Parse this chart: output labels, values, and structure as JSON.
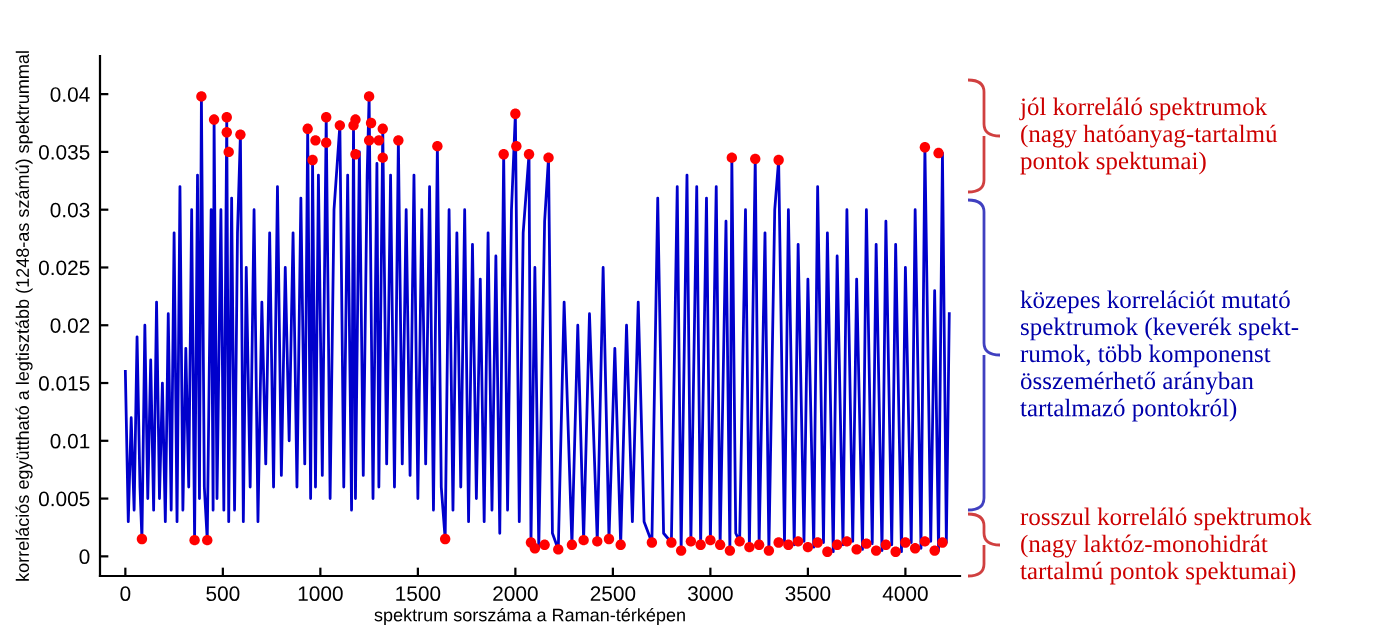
{
  "chart_data": {
    "type": "line",
    "xlabel": "spektrum sorszáma a Raman-térképen",
    "ylabel": "korrelációs együttható a legtisztább (1248-as számú) spektrummal",
    "xlim": [
      -130,
      4280
    ],
    "ylim": [
      -0.0017,
      0.0433
    ],
    "xticks": [
      0,
      500,
      1000,
      1500,
      2000,
      2500,
      3000,
      3500,
      4000
    ],
    "yticks": [
      0,
      0.005,
      0.01,
      0.015,
      0.02,
      0.025,
      0.03,
      0.035,
      0.04
    ],
    "grid": false,
    "legend": false,
    "series": [
      {
        "color": "#0000cc",
        "line_style": "solid",
        "marker": "none",
        "x": [
          0,
          15,
          30,
          45,
          60,
          75,
          85,
          100,
          115,
          130,
          145,
          160,
          175,
          190,
          205,
          220,
          235,
          250,
          265,
          280,
          295,
          310,
          325,
          340,
          355,
          370,
          380,
          390,
          405,
          420,
          440,
          450,
          455,
          470,
          490,
          505,
          520,
          530,
          545,
          560,
          575,
          590,
          605,
          620,
          640,
          660,
          680,
          700,
          720,
          740,
          760,
          780,
          800,
          820,
          840,
          860,
          880,
          900,
          920,
          935,
          950,
          960,
          975,
          990,
          1010,
          1030,
          1050,
          1070,
          1100,
          1120,
          1140,
          1160,
          1170,
          1180,
          1200,
          1220,
          1240,
          1250,
          1270,
          1290,
          1300,
          1320,
          1340,
          1360,
          1380,
          1400,
          1420,
          1440,
          1460,
          1480,
          1500,
          1520,
          1540,
          1560,
          1580,
          1600,
          1620,
          1640,
          1660,
          1680,
          1700,
          1720,
          1740,
          1760,
          1780,
          1800,
          1820,
          1840,
          1860,
          1880,
          1900,
          1920,
          1940,
          1960,
          1980,
          2000,
          2020,
          2040,
          2070,
          2080,
          2100,
          2120,
          2150,
          2170,
          2190,
          2220,
          2250,
          2290,
          2320,
          2350,
          2380,
          2420,
          2450,
          2480,
          2510,
          2540,
          2570,
          2600,
          2630,
          2660,
          2700,
          2730,
          2760,
          2800,
          2830,
          2850,
          2880,
          2900,
          2930,
          2950,
          2980,
          3000,
          3030,
          3050,
          3080,
          3100,
          3110,
          3130,
          3150,
          3180,
          3200,
          3230,
          3250,
          3280,
          3300,
          3330,
          3350,
          3380,
          3400,
          3430,
          3450,
          3480,
          3500,
          3530,
          3550,
          3580,
          3600,
          3630,
          3650,
          3680,
          3700,
          3730,
          3750,
          3780,
          3800,
          3830,
          3850,
          3880,
          3900,
          3930,
          3950,
          3980,
          4000,
          4030,
          4050,
          4080,
          4100,
          4130,
          4150,
          4170,
          4190,
          4210,
          4225
        ],
        "values": [
          0.016,
          0.003,
          0.012,
          0.004,
          0.019,
          0.006,
          0.0015,
          0.02,
          0.005,
          0.017,
          0.004,
          0.022,
          0.005,
          0.015,
          0.003,
          0.021,
          0.004,
          0.028,
          0.003,
          0.032,
          0.004,
          0.018,
          0.006,
          0.03,
          0.0014,
          0.033,
          0.005,
          0.0398,
          0.006,
          0.0014,
          0.03,
          0.004,
          0.0378,
          0.005,
          0.03,
          0.004,
          0.038,
          0.003,
          0.031,
          0.004,
          0.028,
          0.0365,
          0.003,
          0.025,
          0.006,
          0.03,
          0.003,
          0.022,
          0.008,
          0.028,
          0.006,
          0.032,
          0.007,
          0.025,
          0.01,
          0.028,
          0.006,
          0.031,
          0.008,
          0.037,
          0.005,
          0.0343,
          0.006,
          0.033,
          0.007,
          0.038,
          0.005,
          0.03,
          0.0373,
          0.006,
          0.033,
          0.004,
          0.0373,
          0.005,
          0.035,
          0.007,
          0.033,
          0.0398,
          0.005,
          0.034,
          0.006,
          0.037,
          0.008,
          0.033,
          0.006,
          0.036,
          0.008,
          0.03,
          0.007,
          0.033,
          0.005,
          0.03,
          0.008,
          0.032,
          0.004,
          0.0355,
          0.006,
          0.0015,
          0.03,
          0.004,
          0.028,
          0.006,
          0.03,
          0.003,
          0.027,
          0.005,
          0.024,
          0.003,
          0.028,
          0.004,
          0.026,
          0.002,
          0.0348,
          0.004,
          0.03,
          0.0383,
          0.003,
          0.028,
          0.0348,
          0.0012,
          0.025,
          0.0007,
          0.029,
          0.0345,
          0.002,
          0.0006,
          0.022,
          0.001,
          0.02,
          0.0014,
          0.021,
          0.0013,
          0.025,
          0.0015,
          0.018,
          0.001,
          0.02,
          0.003,
          0.022,
          0.003,
          0.0012,
          0.031,
          0.002,
          0.0012,
          0.032,
          0.0005,
          0.033,
          0.0013,
          0.032,
          0.001,
          0.031,
          0.0014,
          0.032,
          0.001,
          0.029,
          0.0005,
          0.0345,
          0.002,
          0.0013,
          0.03,
          0.0008,
          0.0344,
          0.001,
          0.028,
          0.0005,
          0.03,
          0.0343,
          0.0012,
          0.03,
          0.001,
          0.027,
          0.0013,
          0.024,
          0.0008,
          0.032,
          0.0012,
          0.028,
          0.0004,
          0.026,
          0.001,
          0.03,
          0.0013,
          0.024,
          0.0006,
          0.03,
          0.0011,
          0.027,
          0.0005,
          0.029,
          0.001,
          0.027,
          0.0004,
          0.025,
          0.0012,
          0.03,
          0.0007,
          0.0354,
          0.0013,
          0.023,
          0.0005,
          0.0349,
          0.0012,
          0.021
        ]
      },
      {
        "type": "scatter",
        "color": "#ff0000",
        "marker": "circle",
        "x": [
          390,
          455,
          520,
          520,
          530,
          590,
          935,
          960,
          975,
          1030,
          1030,
          1100,
          1170,
          1180,
          1180,
          1250,
          1250,
          1260,
          1300,
          1320,
          1320,
          1400,
          1600,
          1940,
          2000,
          2005,
          2070,
          2170,
          3110,
          3230,
          3350,
          4100,
          4170,
          85,
          355,
          420,
          1640,
          2080,
          2100,
          2150,
          2220,
          2290,
          2350,
          2420,
          2480,
          2540,
          2700,
          2800,
          2850,
          2900,
          2950,
          3000,
          3050,
          3100,
          3150,
          3200,
          3250,
          3300,
          3350,
          3400,
          3450,
          3500,
          3550,
          3600,
          3650,
          3700,
          3750,
          3800,
          3850,
          3900,
          3950,
          4000,
          4050,
          4100,
          4150,
          4190
        ],
        "values": [
          0.0398,
          0.0378,
          0.038,
          0.0367,
          0.035,
          0.0365,
          0.037,
          0.0343,
          0.036,
          0.038,
          0.0358,
          0.0373,
          0.0373,
          0.0348,
          0.0378,
          0.0398,
          0.036,
          0.0375,
          0.036,
          0.037,
          0.0345,
          0.036,
          0.0355,
          0.0348,
          0.0383,
          0.0355,
          0.0348,
          0.0345,
          0.0345,
          0.0344,
          0.0343,
          0.0354,
          0.0349,
          0.0015,
          0.0014,
          0.0014,
          0.0015,
          0.0012,
          0.0007,
          0.001,
          0.0006,
          0.001,
          0.0014,
          0.0013,
          0.0015,
          0.001,
          0.0012,
          0.0012,
          0.0005,
          0.0013,
          0.001,
          0.0014,
          0.001,
          0.0005,
          0.0013,
          0.0008,
          0.001,
          0.0005,
          0.0012,
          0.001,
          0.0013,
          0.0008,
          0.0012,
          0.0004,
          0.001,
          0.0013,
          0.0006,
          0.0011,
          0.0005,
          0.001,
          0.0004,
          0.0012,
          0.0007,
          0.0013,
          0.0005,
          0.0012
        ]
      }
    ],
    "annotations": [
      "jól korreláló spektrumok\n(nagy hatóanyag-tartalmú\npontok spektumai)",
      "közepes korrelációt mutató\nspektrumok (keverék spekt-\nrumok, több komponenst\nösszemérhető arányban\ntartalmazó pontokról)",
      "rosszul korreláló spektrumok\n(nagy laktóz-monohidrát\ntartalmú pontok spektumai)"
    ]
  }
}
